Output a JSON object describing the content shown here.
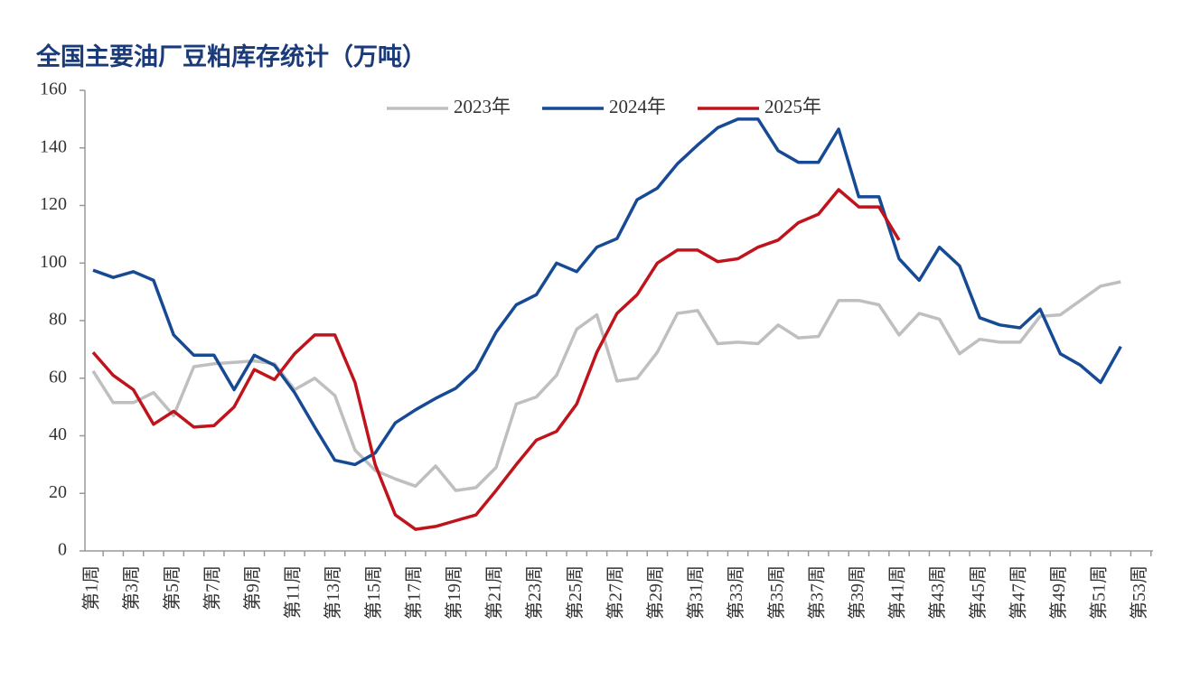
{
  "chart_data": {
    "type": "line",
    "title": "全国主要油厂豆粕库存统计（万吨）",
    "categories": [
      "第1周",
      null,
      "第3周",
      null,
      "第5周",
      null,
      "第7周",
      null,
      "第9周",
      null,
      "第11周",
      null,
      "第13周",
      null,
      "第15周",
      null,
      "第17周",
      null,
      "第19周",
      null,
      "第21周",
      null,
      "第23周",
      null,
      "第25周",
      null,
      "第27周",
      null,
      "第29周",
      null,
      "第31周",
      null,
      "第33周",
      null,
      "第35周",
      null,
      "第37周",
      null,
      "第39周",
      null,
      "第41周",
      null,
      "第43周",
      null,
      "第45周",
      null,
      "第47周",
      null,
      "第49周",
      null,
      "第51周",
      null,
      "第53周"
    ],
    "series": [
      {
        "name": "2023年",
        "color": "#bfbfbf",
        "values": [
          62.5,
          51.5,
          51.5,
          55,
          47,
          64,
          65,
          65.5,
          66,
          65,
          56,
          60,
          54,
          35,
          28,
          25,
          22.5,
          29.5,
          21,
          22,
          29,
          51,
          53.5,
          61,
          77,
          82,
          59,
          60,
          69,
          82.5,
          83.5,
          72,
          72.5,
          72,
          78.5,
          74,
          74.5,
          87,
          87,
          85.5,
          75,
          82.5,
          80.5,
          68.5,
          73.5,
          72.5,
          72.5,
          81.5,
          82,
          87,
          92,
          93.5,
          null
        ]
      },
      {
        "name": "2024年",
        "color": "#174a94",
        "values": [
          97.5,
          95,
          97,
          94,
          75,
          68,
          68,
          56,
          68,
          64.5,
          55,
          43,
          31.5,
          30,
          34,
          44.5,
          49,
          53,
          56.5,
          63,
          76,
          85.5,
          89,
          100,
          97,
          105.5,
          108.5,
          122,
          126,
          134.5,
          141,
          147,
          150,
          150,
          139,
          135,
          135,
          146.5,
          123,
          123,
          101.5,
          94,
          105.5,
          99,
          81,
          78.5,
          77.5,
          84,
          68.5,
          64.5,
          58.5,
          71,
          null
        ]
      },
      {
        "name": "2025年",
        "color": "#c0141c",
        "values": [
          69,
          61,
          56,
          44,
          48.5,
          43,
          43.5,
          50,
          63,
          59.5,
          68.5,
          75,
          75,
          58.5,
          30,
          12.5,
          7.5,
          8.5,
          10.5,
          12.5,
          21,
          30,
          38.5,
          41.5,
          51,
          69,
          82.5,
          89,
          100,
          104.5,
          104.5,
          100.5,
          101.5,
          105.5,
          108,
          114,
          117,
          125.5,
          119.5,
          119.5,
          108,
          null,
          null,
          null,
          null,
          null,
          null,
          null,
          null,
          null,
          null,
          null,
          null
        ]
      }
    ],
    "ylim": [
      0,
      160
    ],
    "yticks": [
      0,
      20,
      40,
      60,
      80,
      100,
      120,
      140,
      160
    ],
    "grid": false,
    "legend": "top"
  }
}
